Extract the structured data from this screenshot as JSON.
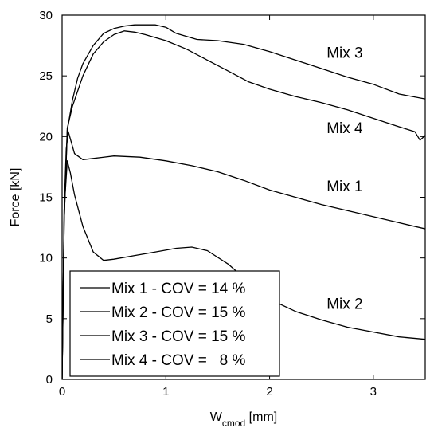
{
  "chart_data": {
    "type": "line",
    "title": "",
    "xlabel": "W",
    "xlabel_subscript": "cmod",
    "xlabel_unit": " [mm]",
    "ylabel": "Force [kN]",
    "xlim": [
      0,
      3.5
    ],
    "ylim": [
      0,
      30
    ],
    "x_ticks": [
      0,
      1,
      2,
      3
    ],
    "y_ticks": [
      0,
      5,
      10,
      15,
      20,
      25,
      30
    ],
    "grid": false,
    "line_color": "#000000",
    "legend": {
      "placement": "lower-left",
      "entries": [
        "Mix 1 - COV = 14 %",
        "Mix 2 - COV = 15 %",
        "Mix 3 - COV = 15 %",
        "Mix 4 - COV =   8 %"
      ]
    },
    "series": [
      {
        "name": "Mix 1",
        "x": [
          0,
          0.02,
          0.04,
          0.06,
          0.08,
          0.12,
          0.2,
          0.3,
          0.5,
          0.75,
          1.0,
          1.25,
          1.5,
          1.75,
          2.0,
          2.25,
          2.5,
          2.75,
          3.0,
          3.25,
          3.5
        ],
        "y": [
          0,
          14.0,
          19.0,
          20.4,
          19.8,
          18.6,
          18.1,
          18.2,
          18.4,
          18.3,
          18.0,
          17.6,
          17.1,
          16.4,
          15.6,
          15.0,
          14.4,
          13.9,
          13.4,
          12.9,
          12.4
        ]
      },
      {
        "name": "Mix 2",
        "x": [
          0,
          0.02,
          0.05,
          0.08,
          0.12,
          0.2,
          0.3,
          0.4,
          0.5,
          0.7,
          0.9,
          1.1,
          1.25,
          1.4,
          1.6,
          1.8,
          2.0,
          2.25,
          2.5,
          2.75,
          3.0,
          3.25,
          3.5
        ],
        "y": [
          0,
          14.0,
          18.0,
          17.0,
          15.2,
          12.6,
          10.5,
          9.8,
          9.9,
          10.2,
          10.5,
          10.8,
          10.9,
          10.6,
          9.5,
          8.0,
          6.6,
          5.6,
          4.9,
          4.3,
          3.9,
          3.5,
          3.3
        ]
      },
      {
        "name": "Mix 3",
        "x": [
          0,
          0.02,
          0.05,
          0.1,
          0.15,
          0.2,
          0.3,
          0.4,
          0.5,
          0.6,
          0.7,
          0.8,
          0.9,
          1.0,
          1.1,
          1.3,
          1.5,
          1.75,
          2.0,
          2.25,
          2.5,
          2.75,
          3.0,
          3.25,
          3.5
        ],
        "y": [
          0,
          13.0,
          20.5,
          23.0,
          24.8,
          26.0,
          27.5,
          28.5,
          28.9,
          29.1,
          29.2,
          29.2,
          29.2,
          29.0,
          28.5,
          28.0,
          27.9,
          27.6,
          27.0,
          26.3,
          25.6,
          24.9,
          24.3,
          23.5,
          23.1
        ]
      },
      {
        "name": "Mix 4",
        "x": [
          0,
          0.02,
          0.05,
          0.1,
          0.2,
          0.3,
          0.4,
          0.5,
          0.6,
          0.7,
          0.8,
          1.0,
          1.2,
          1.4,
          1.6,
          1.8,
          2.0,
          2.25,
          2.5,
          2.75,
          3.0,
          3.25,
          3.4,
          3.45,
          3.5
        ],
        "y": [
          0,
          13.0,
          20.7,
          22.5,
          25.0,
          26.8,
          27.8,
          28.4,
          28.7,
          28.6,
          28.4,
          27.9,
          27.2,
          26.3,
          25.4,
          24.5,
          23.9,
          23.3,
          22.8,
          22.2,
          21.5,
          20.8,
          20.4,
          19.7,
          20.1
        ]
      }
    ],
    "annotations": [
      {
        "text": "Mix 3",
        "x": 2.55,
        "y": 26.5
      },
      {
        "text": "Mix 4",
        "x": 2.55,
        "y": 20.3
      },
      {
        "text": "Mix 1",
        "x": 2.55,
        "y": 15.5
      },
      {
        "text": "Mix 2",
        "x": 2.55,
        "y": 5.8
      }
    ]
  }
}
